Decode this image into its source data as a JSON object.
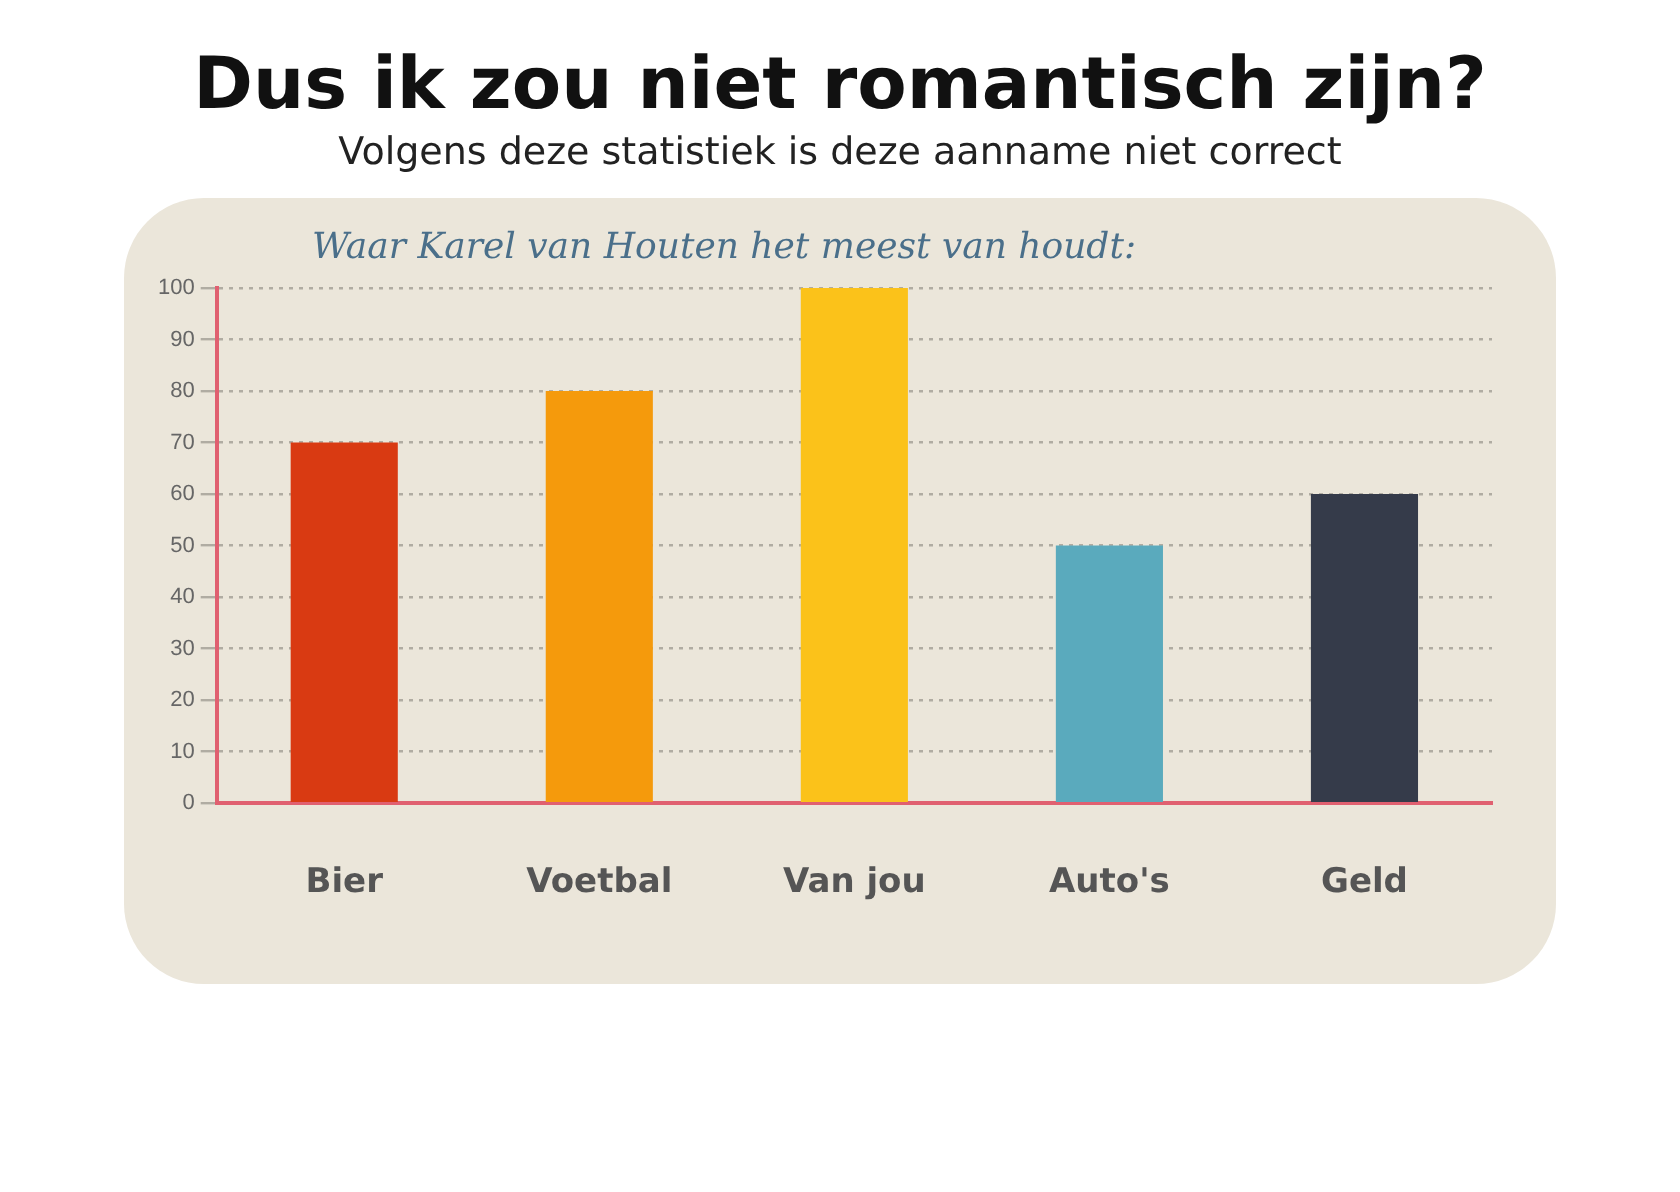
{
  "chart_data": {
    "type": "bar",
    "title": "Dus ik zou niet romantisch zijn?",
    "subtitle": "Volgens deze statistiek is deze aanname niet correct",
    "annotations": [
      "Waar Karel van Houten het meest van houdt:"
    ],
    "categories": [
      "Bier",
      "Voetbal",
      "Van jou",
      "Auto's",
      "Geld"
    ],
    "values": [
      70,
      80,
      100,
      50,
      60
    ],
    "colors": [
      "#d93a12",
      "#f59a0c",
      "#fbc21a",
      "#5aaabd",
      "#353b4a"
    ],
    "ylim": [
      0,
      100
    ],
    "yticks": [
      0,
      10,
      20,
      30,
      40,
      50,
      60,
      70,
      80,
      90,
      100
    ],
    "grid": "y"
  }
}
